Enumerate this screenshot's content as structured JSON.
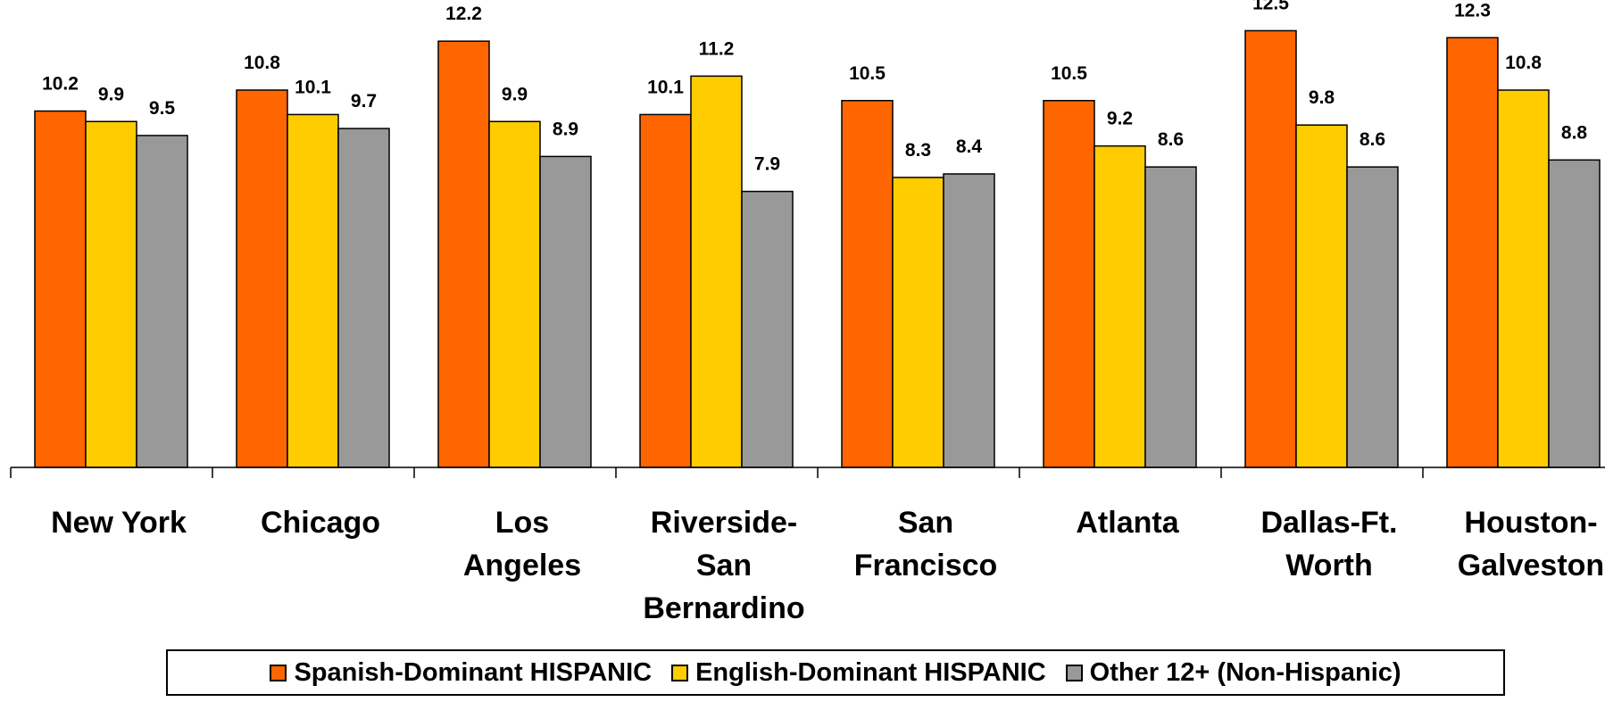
{
  "chart_data": {
    "type": "bar",
    "title": "",
    "xlabel": "",
    "ylabel": "",
    "ylim": [
      0,
      13.2
    ],
    "grid": false,
    "legend_position": "bottom",
    "categories": [
      [
        "New York"
      ],
      [
        "Chicago"
      ],
      [
        "Los",
        "Angeles"
      ],
      [
        "Riverside-",
        "San",
        "Bernardino"
      ],
      [
        "San",
        "Francisco"
      ],
      [
        "Atlanta"
      ],
      [
        "Dallas-Ft.",
        "Worth"
      ],
      [
        "Houston-",
        "Galveston"
      ]
    ],
    "series": [
      {
        "name": "Spanish-Dominant HISPANIC",
        "color": "#ff6600",
        "values": [
          10.2,
          10.8,
          12.2,
          10.1,
          10.5,
          10.5,
          12.5,
          12.3
        ]
      },
      {
        "name": "English-Dominant HISPANIC",
        "color": "#ffcc00",
        "values": [
          9.9,
          10.1,
          9.9,
          11.2,
          8.3,
          9.2,
          9.8,
          10.8
        ]
      },
      {
        "name": "Other 12+ (Non-Hispanic)",
        "color": "#999999",
        "values": [
          9.5,
          9.7,
          8.9,
          7.9,
          8.4,
          8.6,
          8.6,
          8.8
        ]
      }
    ]
  }
}
